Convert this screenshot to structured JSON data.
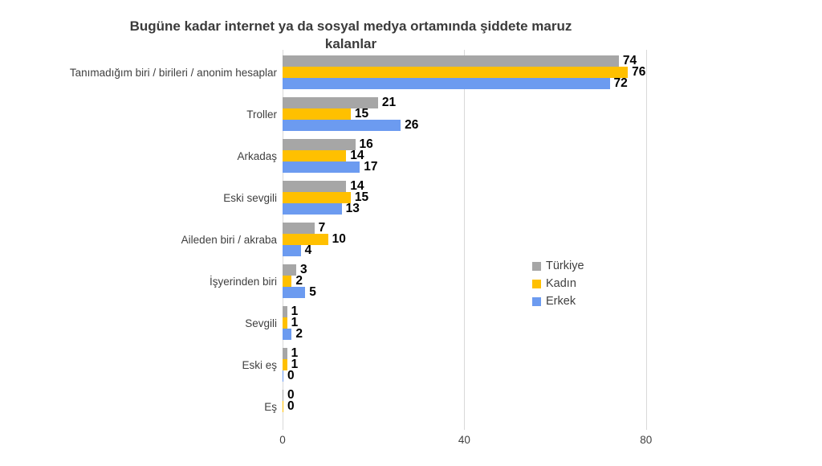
{
  "chart": {
    "title_lines": [
      "Bugüne kadar internet ya da sosyal medya ortamında şiddete maruz",
      "kalanlar"
    ],
    "colors": {
      "turkiye": "#A6A6A6",
      "kadin": "#FFC000",
      "erkek": "#6C9BF0",
      "gridline": "#D9D9D9",
      "data_label": "#000000",
      "axis_text": "#404040",
      "title_text": "#3B3B3B"
    }
  },
  "chart_data": {
    "type": "bar",
    "orientation": "horizontal",
    "title": "Bugüne kadar internet ya da sosyal medya ortamında şiddete maruz kalanlar",
    "categories": [
      "Tanımadığım biri / birileri / anonim hesaplar",
      "Troller",
      "Arkadaş",
      "Eski sevgili",
      "Aileden biri / akraba",
      "İşyerinden biri",
      "Sevgili",
      "Eski eş",
      "Eş"
    ],
    "series": [
      {
        "key": "turkiye",
        "name": "Türkiye",
        "color": "#A6A6A6",
        "values": [
          74,
          21,
          16,
          14,
          7,
          3,
          1,
          1,
          0
        ],
        "labels": [
          "74",
          "21",
          "16",
          "14",
          "7",
          "3",
          "1",
          "1",
          "0"
        ]
      },
      {
        "key": "kadin",
        "name": "Kadın",
        "color": "#FFC000",
        "values": [
          76,
          15,
          14,
          15,
          10,
          2,
          1,
          1,
          0
        ],
        "labels": [
          "76",
          "15",
          "14",
          "15",
          "10",
          "2",
          "1",
          "1",
          "0"
        ]
      },
      {
        "key": "erkek",
        "name": "Erkek",
        "color": "#6C9BF0",
        "values": [
          72,
          26,
          17,
          13,
          4,
          5,
          2,
          0,
          null
        ],
        "labels": [
          "72",
          "26",
          "17",
          "13",
          "4",
          "5",
          "2",
          "0",
          ""
        ]
      }
    ],
    "xlim": [
      0,
      100
    ],
    "x_ticks": [
      {
        "value": 0,
        "label": "0"
      },
      {
        "value": 40,
        "label": "40"
      },
      {
        "value": 80,
        "label": "80"
      }
    ],
    "grid": true,
    "legend_position": "middle-right",
    "legend": [
      "Türkiye",
      "Kadın",
      "Erkek"
    ]
  }
}
